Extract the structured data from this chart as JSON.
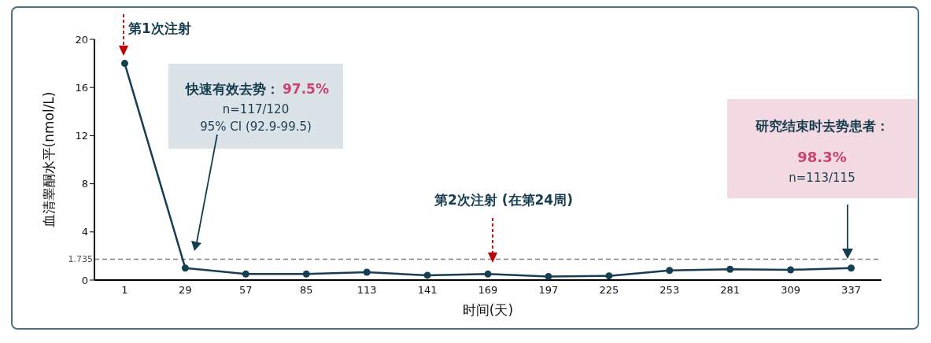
{
  "chart_data": {
    "type": "line",
    "xlabel": "时间(天)",
    "ylabel": "血清睾酮水平(nmol/L)",
    "categories": [
      "1",
      "29",
      "57",
      "85",
      "113",
      "141",
      "169",
      "197",
      "225",
      "253",
      "281",
      "309",
      "337"
    ],
    "series": [
      {
        "color": "#173f53",
        "values": [
          18.0,
          1.0,
          0.5,
          0.5,
          0.65,
          0.4,
          0.5,
          0.3,
          0.35,
          0.8,
          0.9,
          0.85,
          1.0
        ]
      }
    ],
    "ylim": [
      0,
      20
    ],
    "yticks": [
      0,
      4,
      8,
      12,
      16,
      20
    ],
    "grid": false,
    "marker": "circle",
    "line_style": "solid",
    "ref_lines": [
      {
        "axis": "y",
        "value": 1.735,
        "label": "1.735",
        "color": "#7f7f7f",
        "line_style": "dashed"
      }
    ],
    "annotations": [
      "第1次注射",
      "快速有效去势：",
      "97.5%",
      "n=117/120",
      "95% CI (92.9-99.5)",
      "第2次注射 (在第24周)",
      "研究结束时去势患者：",
      "98.3%",
      "n=113/115"
    ]
  }
}
